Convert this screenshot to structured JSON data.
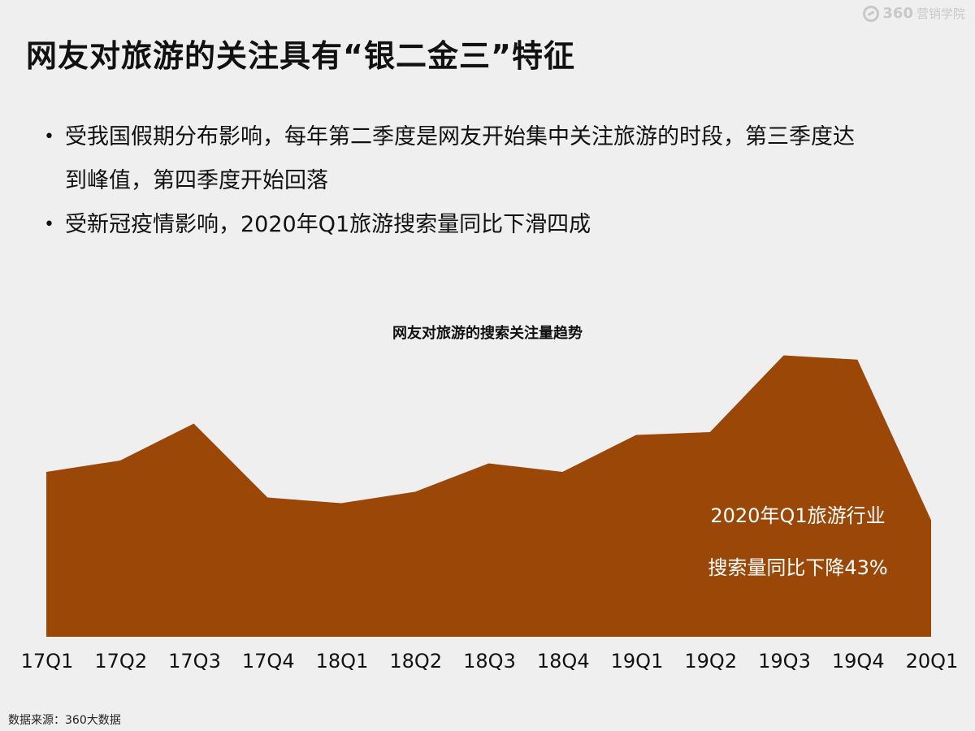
{
  "brand": {
    "logo_text": "360",
    "logo_sub": "营销学院"
  },
  "title": "网友对旅游的关注具有“银二金三”特征",
  "bullets": [
    "受我国假期分布影响，每年第二季度是网友开始集中关注旅游的时段，第三季度达到峰值，第四季度开始回落",
    "受新冠疫情影响，2020年Q1旅游搜索量同比下滑四成"
  ],
  "colors": {
    "area": "#9a4708",
    "background": "#efefef",
    "annotation_text": "#ffffff"
  },
  "chart_data": {
    "type": "area",
    "title": "网友对旅游的搜索关注量趋势",
    "categories": [
      "17Q1",
      "17Q2",
      "17Q3",
      "17Q4",
      "18Q1",
      "18Q2",
      "18Q3",
      "18Q4",
      "19Q1",
      "19Q2",
      "19Q3",
      "19Q4",
      "20Q1"
    ],
    "series": [
      {
        "values": [
          58,
          62,
          75,
          49,
          47,
          51,
          61,
          58,
          71,
          72,
          99,
          97.5,
          41
        ]
      }
    ],
    "ylim": [
      0,
      100
    ],
    "grid": false,
    "legend": "none",
    "annotation": [
      "2020年Q1旅游行业",
      "搜索量同比下降43%"
    ]
  },
  "source": "数据来源：360大数据"
}
